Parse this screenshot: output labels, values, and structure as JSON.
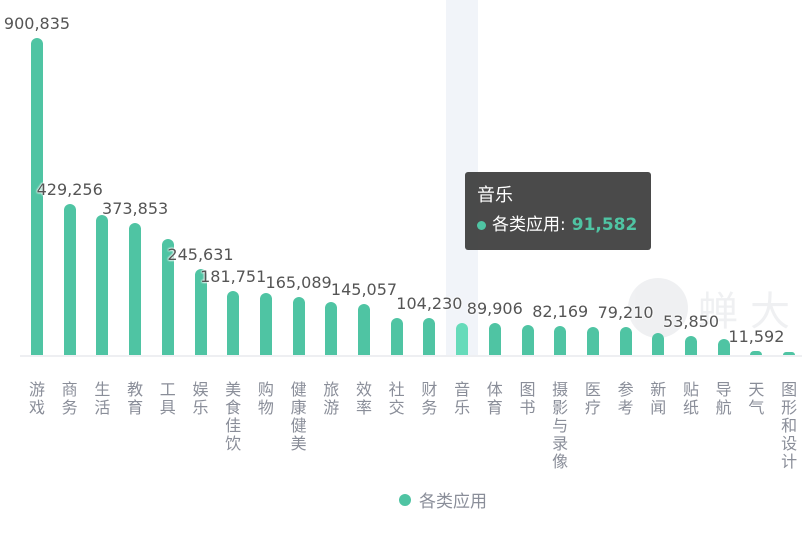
{
  "chart_data": {
    "type": "bar",
    "title": "",
    "xlabel": "",
    "ylabel": "",
    "categories": [
      "游戏",
      "商务",
      "生活",
      "教育",
      "工具",
      "娱乐",
      "美食佳饮",
      "购物",
      "健康健美",
      "旅游",
      "效率",
      "社交",
      "财务",
      "音乐",
      "体育",
      "图书",
      "摄影与录像",
      "医疗",
      "参考",
      "新闻",
      "贴纸",
      "导航",
      "天气",
      "图形和设计"
    ],
    "series": [
      {
        "name": "各类应用",
        "color": "#4fc4a3",
        "values": [
          900835,
          429256,
          398000,
          373853,
          330000,
          245631,
          181751,
          176000,
          165089,
          150000,
          145057,
          105000,
          104230,
          91582,
          89906,
          85000,
          82169,
          80000,
          79210,
          62000,
          53850,
          45000,
          11592,
          2000
        ]
      }
    ],
    "visible_value_labels": {
      "游戏": "900,835",
      "商务": "429,256",
      "教育": "373,853",
      "娱乐": "245,631",
      "美食佳饮": "181,751",
      "健康健美": "165,089",
      "效率": "145,057",
      "财务": "104,230",
      "体育": "89,906",
      "摄影与录像": "82,169",
      "参考": "79,210",
      "贴纸": "53,850",
      "天气": "11,592"
    },
    "ylim": [
      0,
      900835
    ],
    "grid": false,
    "legend_position": "bottom-center"
  },
  "tooltip": {
    "category": "音乐",
    "series_name": "各类应用",
    "separator": ":",
    "value": "91,582"
  },
  "legend": {
    "label": "各类应用"
  },
  "watermark": {
    "text": "蝉大"
  },
  "hovered_index": 13
}
